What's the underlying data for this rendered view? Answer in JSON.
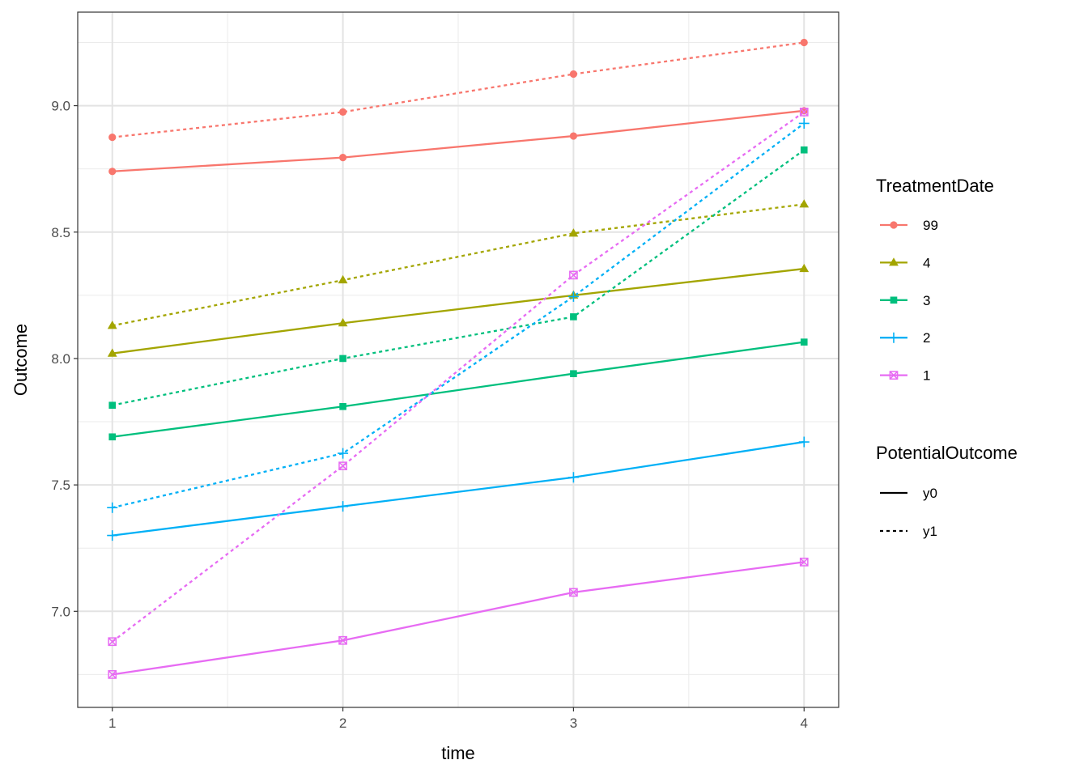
{
  "chart_data": {
    "type": "line",
    "xlabel": "time",
    "ylabel": "Outcome",
    "x": [
      1,
      2,
      3,
      4
    ],
    "xticks": [
      "1",
      "2",
      "3",
      "4"
    ],
    "yticks": [
      "7.0",
      "7.5",
      "8.0",
      "8.5",
      "9.0"
    ],
    "xlim": [
      0.85,
      4.15
    ],
    "ylim": [
      6.62,
      9.37
    ],
    "grid": true,
    "legend_position": "right",
    "color_legend": {
      "title": "TreatmentDate",
      "entries": [
        {
          "label": "99",
          "color": "#F8766D",
          "shape": "circle"
        },
        {
          "label": "4",
          "color": "#A3A500",
          "shape": "triangle"
        },
        {
          "label": "3",
          "color": "#00BF7D",
          "shape": "square"
        },
        {
          "label": "2",
          "color": "#00B0F6",
          "shape": "plus"
        },
        {
          "label": "1",
          "color": "#E76BF3",
          "shape": "square-x"
        }
      ]
    },
    "linetype_legend": {
      "title": "PotentialOutcome",
      "entries": [
        {
          "label": "y0",
          "dash": "solid"
        },
        {
          "label": "y1",
          "dash": "dashed"
        }
      ]
    },
    "series": [
      {
        "treatment": "99",
        "outcome": "y0",
        "values": [
          8.74,
          8.795,
          8.88,
          8.98
        ]
      },
      {
        "treatment": "99",
        "outcome": "y1",
        "values": [
          8.875,
          8.975,
          9.125,
          9.25
        ]
      },
      {
        "treatment": "4",
        "outcome": "y0",
        "values": [
          8.02,
          8.14,
          8.25,
          8.355
        ]
      },
      {
        "treatment": "4",
        "outcome": "y1",
        "values": [
          8.13,
          8.31,
          8.495,
          8.61
        ]
      },
      {
        "treatment": "3",
        "outcome": "y0",
        "values": [
          7.69,
          7.81,
          7.94,
          8.065
        ]
      },
      {
        "treatment": "3",
        "outcome": "y1",
        "values": [
          7.815,
          8.0,
          8.165,
          8.825
        ]
      },
      {
        "treatment": "2",
        "outcome": "y0",
        "values": [
          7.3,
          7.415,
          7.53,
          7.67
        ]
      },
      {
        "treatment": "2",
        "outcome": "y1",
        "values": [
          7.41,
          7.625,
          8.245,
          8.93
        ]
      },
      {
        "treatment": "1",
        "outcome": "y0",
        "values": [
          6.75,
          6.885,
          7.075,
          7.195
        ]
      },
      {
        "treatment": "1",
        "outcome": "y1",
        "values": [
          6.88,
          7.575,
          8.33,
          8.975
        ]
      }
    ]
  }
}
